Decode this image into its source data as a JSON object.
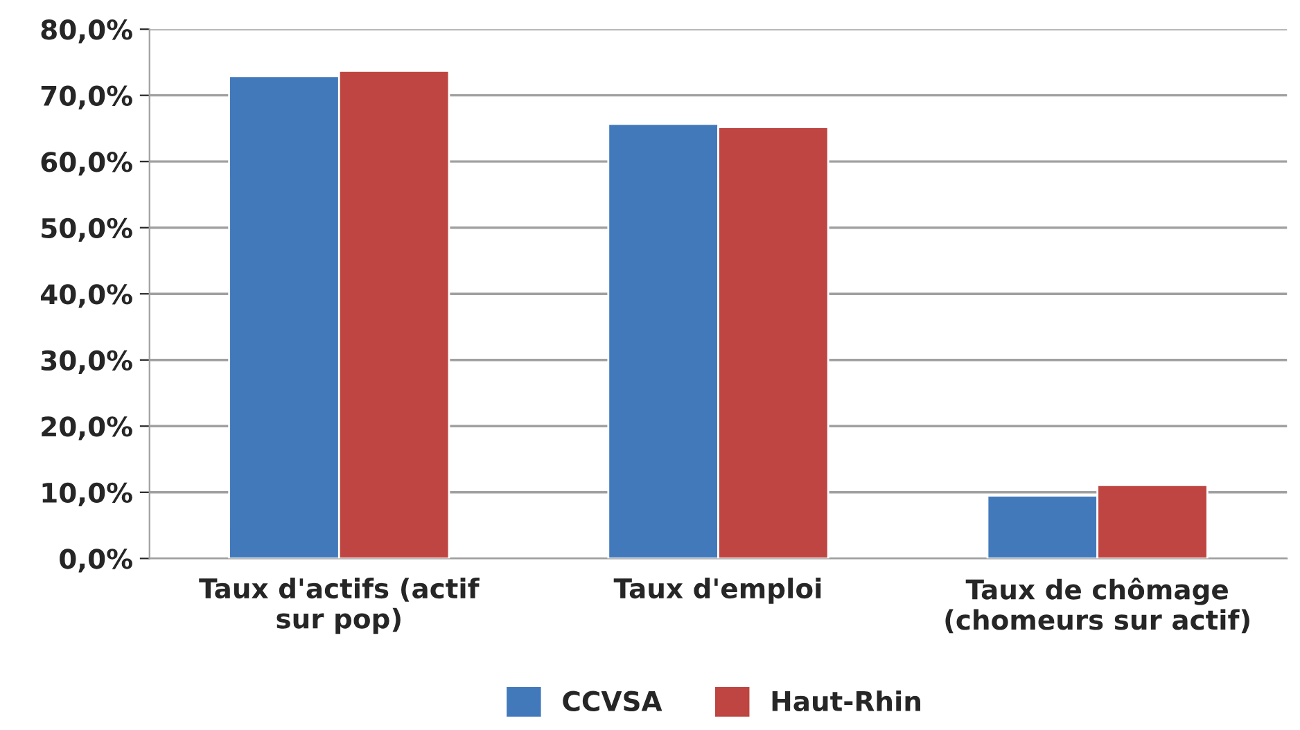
{
  "chart_data": {
    "type": "bar",
    "categories": [
      "Taux d'actifs (actif sur pop)",
      "Taux d'emploi",
      "Taux de chômage (chomeurs sur actif)"
    ],
    "series": [
      {
        "name": "CCVSA",
        "color": "#4279bb",
        "values": [
          72.9,
          65.7,
          9.5
        ]
      },
      {
        "name": "Haut-Rhin",
        "color": "#be4541",
        "values": [
          73.7,
          65.2,
          11.1
        ]
      }
    ],
    "ylim": [
      0,
      80
    ],
    "yticks": [
      {
        "value": 0,
        "label": "0,0%"
      },
      {
        "value": 10,
        "label": "10,0%"
      },
      {
        "value": 20,
        "label": "20,0%"
      },
      {
        "value": 30,
        "label": "30,0%"
      },
      {
        "value": 40,
        "label": "40,0%"
      },
      {
        "value": 50,
        "label": "50,0%"
      },
      {
        "value": 60,
        "label": "60,0%"
      },
      {
        "value": 70,
        "label": "70,0%"
      },
      {
        "value": 80,
        "label": "80,0%"
      }
    ],
    "grid": "y",
    "legend": "bottom"
  }
}
